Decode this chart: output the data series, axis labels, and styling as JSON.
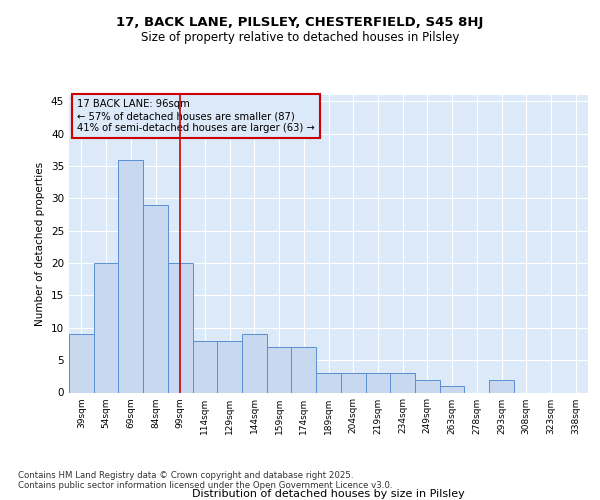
{
  "title1": "17, BACK LANE, PILSLEY, CHESTERFIELD, S45 8HJ",
  "title2": "Size of property relative to detached houses in Pilsley",
  "xlabel": "Distribution of detached houses by size in Pilsley",
  "ylabel": "Number of detached properties",
  "categories": [
    "39sqm",
    "54sqm",
    "69sqm",
    "84sqm",
    "99sqm",
    "114sqm",
    "129sqm",
    "144sqm",
    "159sqm",
    "174sqm",
    "189sqm",
    "204sqm",
    "219sqm",
    "234sqm",
    "249sqm",
    "263sqm",
    "278sqm",
    "293sqm",
    "308sqm",
    "323sqm",
    "338sqm"
  ],
  "values": [
    9,
    20,
    36,
    29,
    20,
    8,
    8,
    9,
    7,
    7,
    3,
    3,
    3,
    3,
    2,
    1,
    0,
    2,
    0,
    0,
    0
  ],
  "bar_color": "#c8d9ef",
  "bar_edge_color": "#5b8fd4",
  "bg_color": "#ffffff",
  "plot_bg_color": "#dce9f8",
  "grid_color": "#ffffff",
  "vline_x": 4,
  "vline_color": "#cc0000",
  "annotation_text": "17 BACK LANE: 96sqm\n← 57% of detached houses are smaller (87)\n41% of semi-detached houses are larger (63) →",
  "annotation_box_color": "#cc0000",
  "footnote": "Contains HM Land Registry data © Crown copyright and database right 2025.\nContains public sector information licensed under the Open Government Licence v3.0.",
  "ylim": [
    0,
    46
  ],
  "yticks": [
    0,
    5,
    10,
    15,
    20,
    25,
    30,
    35,
    40,
    45
  ]
}
